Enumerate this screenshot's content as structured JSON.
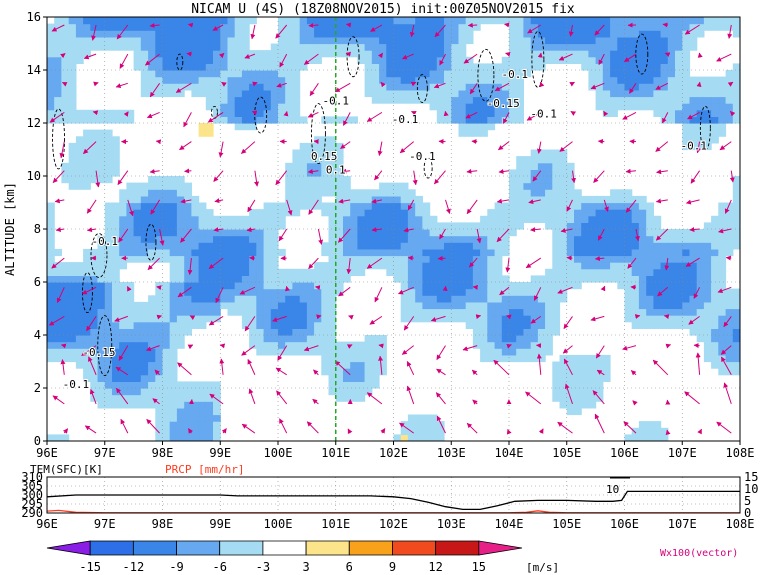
{
  "chart_data": [
    {
      "type": "heatmap",
      "title": "NICAM U (4S) (18Z08NOV2015) init:00Z05NOV2015 fix",
      "ylabel": "ALTITUDE [km]",
      "xlim": [
        96,
        108
      ],
      "ylim": [
        0,
        16
      ],
      "xticks": [
        "96E",
        "97E",
        "98E",
        "99E",
        "100E",
        "101E",
        "102E",
        "103E",
        "104E",
        "105E",
        "106E",
        "107E",
        "108E"
      ],
      "yticks": [
        "0",
        "2",
        "4",
        "6",
        "8",
        "10",
        "12",
        "14",
        "16"
      ],
      "grid": true,
      "marker_line_lon": 101,
      "contour_labels": [
        {
          "text": "-0.1",
          "lon": 97.0,
          "alt": 7.4
        },
        {
          "text": "-0.15",
          "lon": 96.9,
          "alt": 3.2
        },
        {
          "text": "-0.1",
          "lon": 96.5,
          "alt": 2.0
        },
        {
          "text": "-0.1",
          "lon": 101.0,
          "alt": 12.7
        },
        {
          "text": "0.15",
          "lon": 100.8,
          "alt": 10.6
        },
        {
          "text": "0.1",
          "lon": 101.0,
          "alt": 10.1
        },
        {
          "text": "-0.1",
          "lon": 102.2,
          "alt": 12.0
        },
        {
          "text": "-0.1",
          "lon": 102.5,
          "alt": 10.6
        },
        {
          "text": "-0.1",
          "lon": 104.1,
          "alt": 13.7
        },
        {
          "text": "-0.15",
          "lon": 103.9,
          "alt": 12.6
        },
        {
          "text": "-0.1",
          "lon": 104.6,
          "alt": 12.2
        },
        {
          "text": "-0.1",
          "lon": 107.2,
          "alt": 11.0
        }
      ],
      "u_levels": [
        {
          "min": -12,
          "max": -9,
          "color": "#3a86e8"
        },
        {
          "min": -9,
          "max": -6,
          "color": "#66a9f0"
        },
        {
          "min": -6,
          "max": -3,
          "color": "#a6dcf3"
        },
        {
          "min": 3,
          "max": 6,
          "color": "#fbe489"
        }
      ]
    },
    {
      "type": "line",
      "series": [
        {
          "name": "TEM(SFC)[K]",
          "color": "#000000",
          "x": [
            96,
            96.5,
            97,
            98,
            99,
            99.3,
            100,
            101,
            101.6,
            102,
            102.3,
            102.6,
            102.9,
            103.2,
            103.5,
            103.8,
            104.1,
            104.5,
            105,
            105.5,
            105.8,
            105.95,
            106.05,
            106.5,
            107,
            108
          ],
          "values": [
            299,
            300,
            300,
            300,
            300,
            299.5,
            299.5,
            299.5,
            299.5,
            299,
            298,
            296,
            293.5,
            292,
            292,
            294,
            296.5,
            297,
            297,
            296.5,
            296.5,
            297,
            302,
            302,
            302,
            302
          ]
        },
        {
          "name": "PRCP [mm/hr]",
          "color": "#ff3b1f",
          "x": [
            96,
            96.2,
            96.5,
            97,
            98,
            99,
            100,
            101,
            102,
            103,
            104,
            104.3,
            104.5,
            104.7,
            105,
            106,
            107,
            108
          ],
          "values": [
            0.8,
            1.1,
            0.3,
            0.1,
            0.1,
            0.1,
            0.1,
            0.1,
            0.1,
            0.1,
            0.1,
            0.3,
            0.9,
            0.3,
            0.1,
            0.1,
            0.1,
            0.1
          ]
        }
      ],
      "xticks": [
        "96E",
        "97E",
        "98E",
        "99E",
        "100E",
        "101E",
        "102E",
        "103E",
        "104E",
        "105E",
        "106E",
        "107E",
        "108E"
      ],
      "yticks_left": [
        "290",
        "295",
        "300",
        "305",
        "310"
      ],
      "yticks_right": [
        "0",
        "5",
        "10",
        "15"
      ],
      "annotation": "10"
    },
    {
      "type": "colorbar",
      "labels": [
        "-15",
        "-12",
        "-9",
        "-6",
        "-3",
        "3",
        "6",
        "9",
        "12",
        "15"
      ],
      "colors": [
        "#8a1ee6",
        "#2c6fe6",
        "#3a86e8",
        "#66a9f0",
        "#a6dcf3",
        "#ffffff",
        "#fbe489",
        "#f8a21b",
        "#f04a1e",
        "#c81717",
        "#e62087"
      ],
      "unit": "[m/s]",
      "vector_label": "Wx100(vector)"
    }
  ]
}
